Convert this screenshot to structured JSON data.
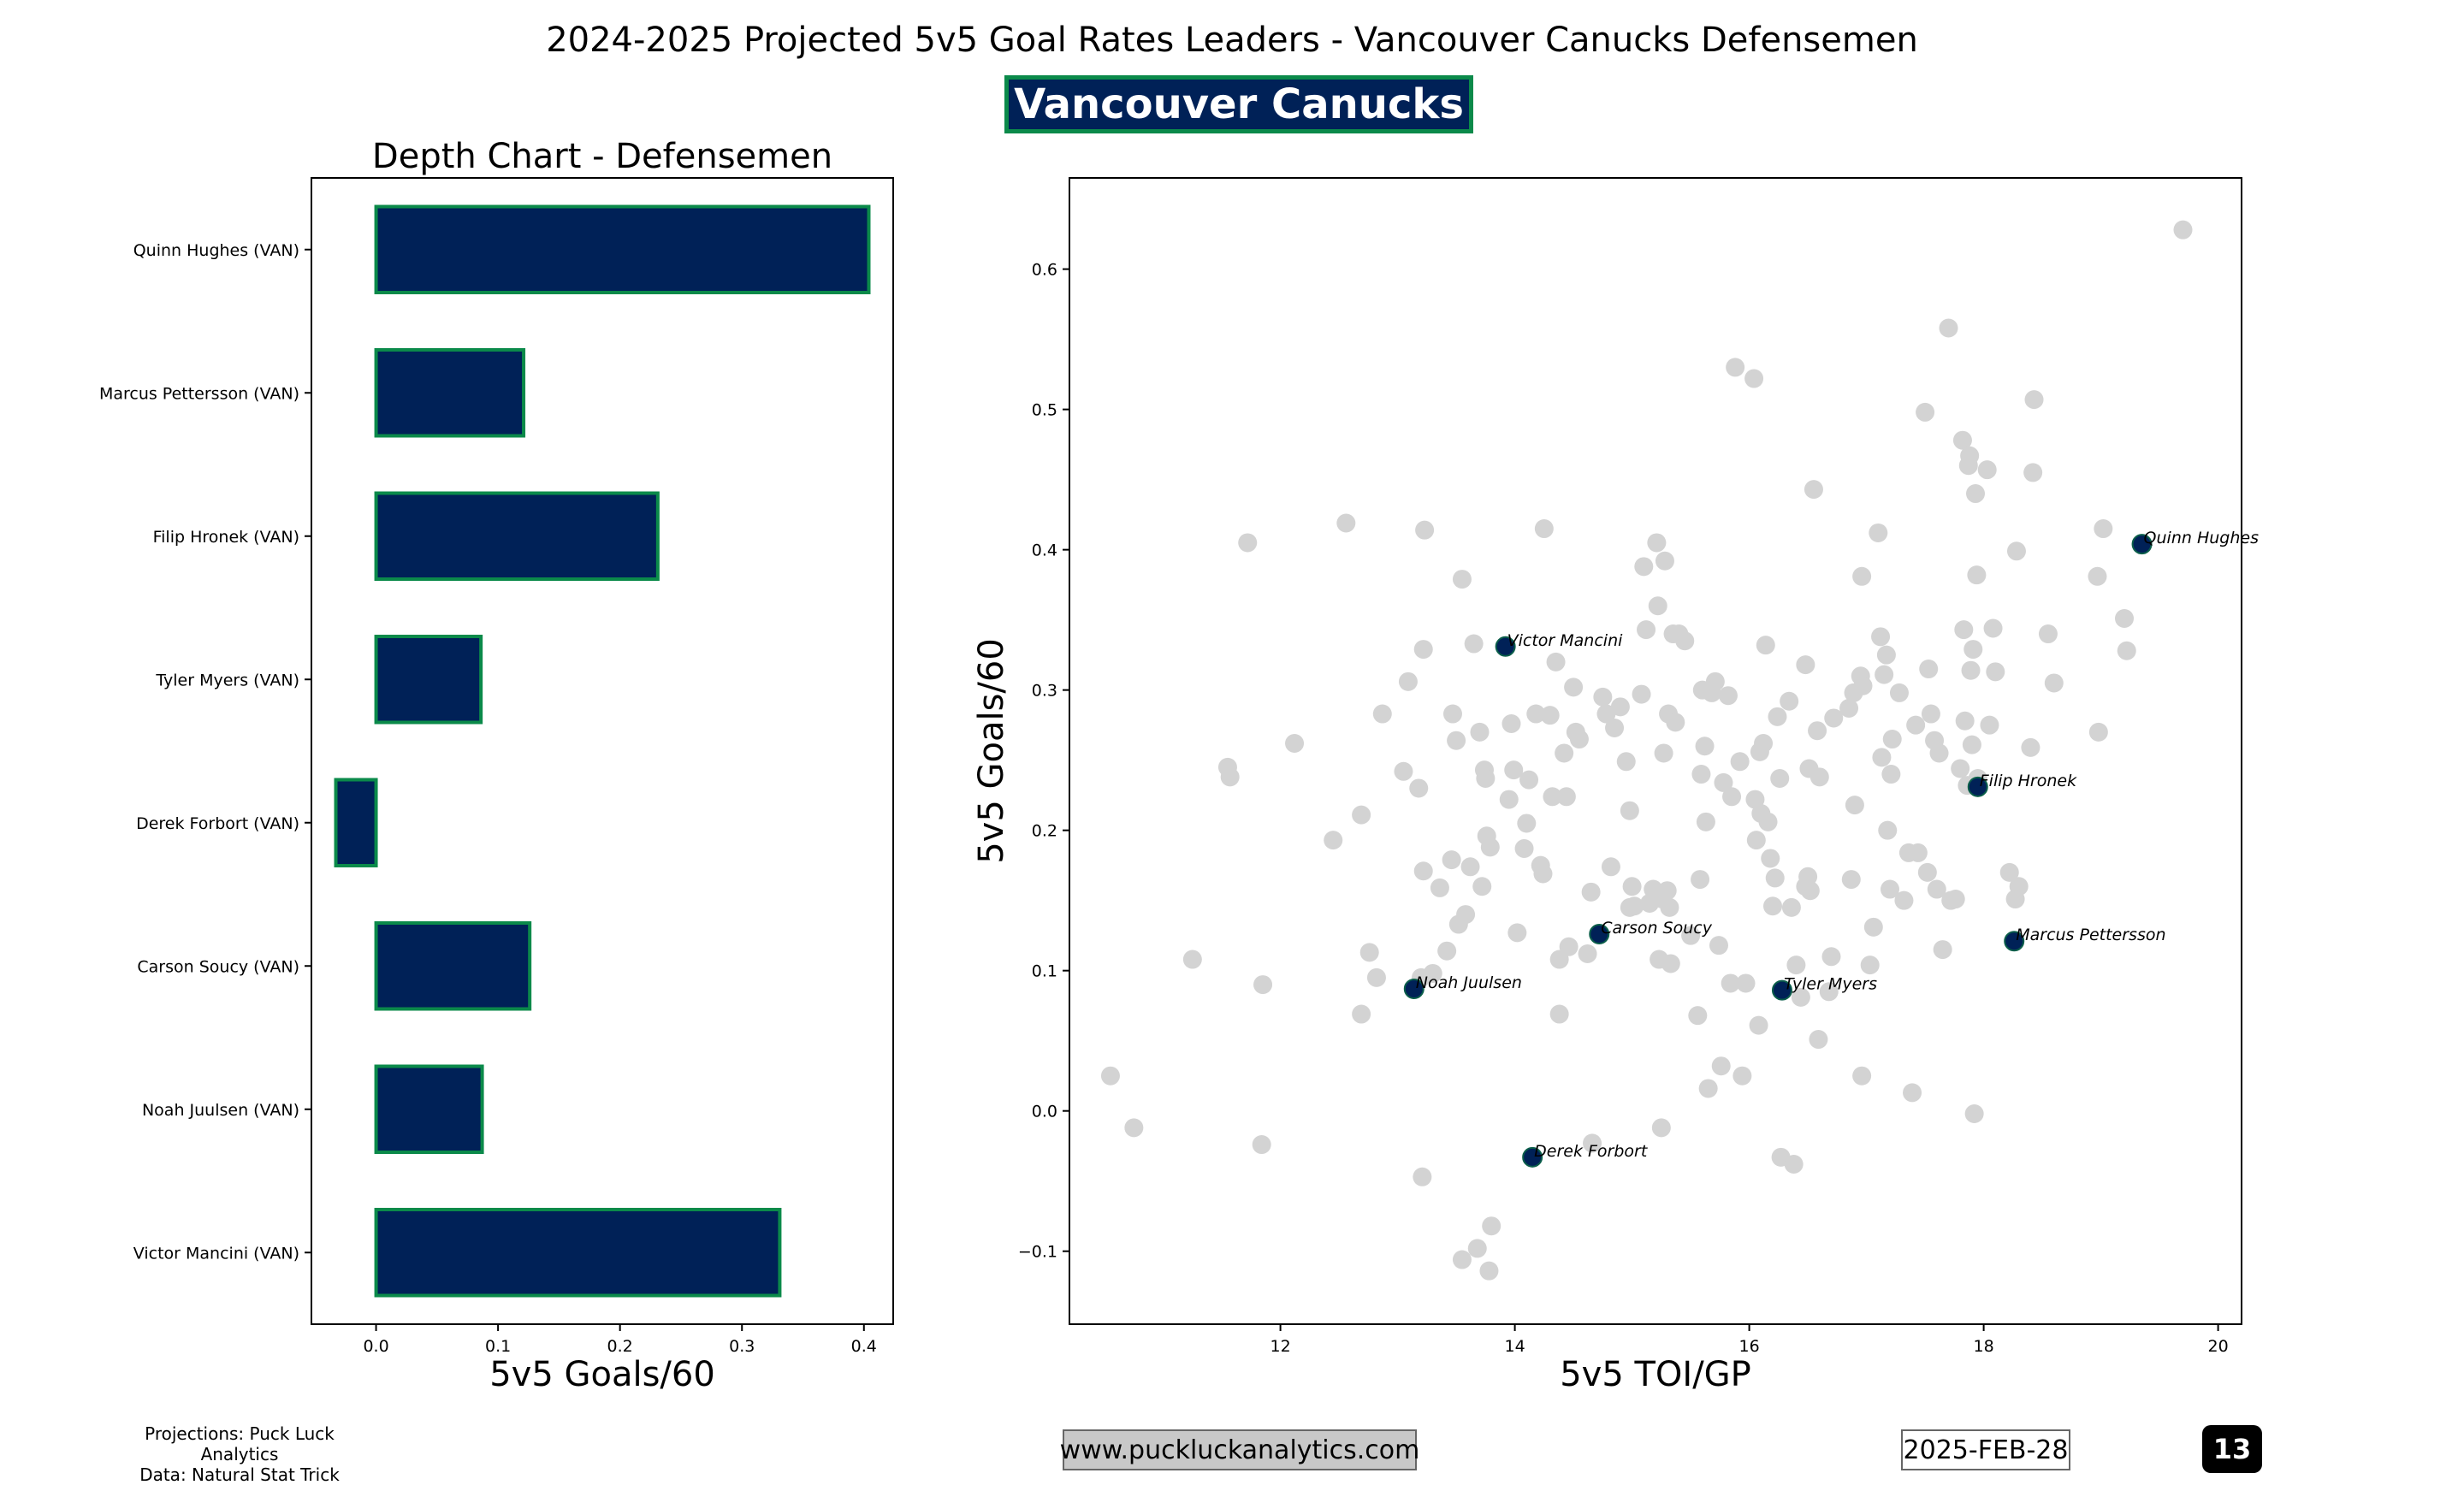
{
  "header": {
    "title": "2024-2025 Projected 5v5 Goal Rates Leaders - Vancouver Canucks Defensemen",
    "team_badge": "Vancouver Canucks"
  },
  "colors": {
    "bar_fill": "#002157",
    "bar_edge": "#0b8a4a",
    "highlight_point": "#002157",
    "background_point": "#d3d3d3"
  },
  "chart_data": [
    {
      "type": "bar",
      "orientation": "horizontal",
      "title": "Depth Chart - Defensemen",
      "xlabel": "5v5 Goals/60",
      "ylabel": "",
      "xlim": [
        -0.053,
        0.424
      ],
      "xticks": [
        "0.0",
        "0.1",
        "0.2",
        "0.3",
        "0.4"
      ],
      "categories": [
        "Quinn Hughes (VAN)",
        "Marcus Pettersson (VAN)",
        "Filip Hronek (VAN)",
        "Tyler Myers (VAN)",
        "Derek Forbort (VAN)",
        "Carson Soucy (VAN)",
        "Noah Juulsen (VAN)",
        "Victor Mancini (VAN)"
      ],
      "values": [
        0.404,
        0.121,
        0.231,
        0.086,
        -0.033,
        0.126,
        0.087,
        0.331
      ]
    },
    {
      "type": "scatter",
      "xlabel": "5v5 TOI/GP",
      "ylabel": "5v5 Goals/60",
      "xlim": [
        10.2,
        20.2
      ],
      "ylim": [
        -0.152,
        0.665
      ],
      "xticks": [
        "12",
        "14",
        "16",
        "18",
        "20"
      ],
      "yticks": [
        "−0.1",
        "0.0",
        "0.1",
        "0.2",
        "0.3",
        "0.4",
        "0.5",
        "0.6"
      ],
      "highlighted": [
        {
          "label": "Quinn Hughes",
          "x": 19.35,
          "y": 0.404
        },
        {
          "label": "Victor Mancini",
          "x": 13.92,
          "y": 0.331
        },
        {
          "label": "Filip Hronek",
          "x": 17.95,
          "y": 0.231
        },
        {
          "label": "Carson Soucy",
          "x": 14.72,
          "y": 0.126
        },
        {
          "label": "Marcus Pettersson",
          "x": 18.26,
          "y": 0.121
        },
        {
          "label": "Noah Juulsen",
          "x": 13.14,
          "y": 0.087
        },
        {
          "label": "Tyler Myers",
          "x": 16.28,
          "y": 0.086
        },
        {
          "label": "Derek Forbort",
          "x": 14.15,
          "y": -0.033
        }
      ],
      "others": [
        [
          10.55,
          0.025
        ],
        [
          10.75,
          -0.012
        ],
        [
          11.25,
          0.108
        ],
        [
          11.55,
          0.245
        ],
        [
          11.57,
          0.238
        ],
        [
          11.72,
          0.405
        ],
        [
          11.85,
          0.09
        ],
        [
          11.84,
          -0.024
        ],
        [
          12.12,
          0.262
        ],
        [
          12.45,
          0.193
        ],
        [
          12.56,
          0.419
        ],
        [
          12.69,
          0.211
        ],
        [
          12.76,
          0.113
        ],
        [
          12.82,
          0.095
        ],
        [
          12.87,
          0.283
        ],
        [
          12.69,
          0.069
        ],
        [
          13.05,
          0.242
        ],
        [
          13.09,
          0.306
        ],
        [
          13.18,
          0.23
        ],
        [
          13.22,
          0.329
        ],
        [
          13.23,
          0.414
        ],
        [
          13.22,
          0.171
        ],
        [
          13.21,
          -0.047
        ],
        [
          13.3,
          0.098
        ],
        [
          13.36,
          0.159
        ],
        [
          13.42,
          0.114
        ],
        [
          13.47,
          0.283
        ],
        [
          13.46,
          0.179
        ],
        [
          13.5,
          0.264
        ],
        [
          13.52,
          0.133
        ],
        [
          13.55,
          0.379
        ],
        [
          13.58,
          0.14
        ],
        [
          13.62,
          0.174
        ],
        [
          13.65,
          0.333
        ],
        [
          13.7,
          0.27
        ],
        [
          13.72,
          0.16
        ],
        [
          13.74,
          0.243
        ],
        [
          13.75,
          0.237
        ],
        [
          13.76,
          0.196
        ],
        [
          13.79,
          0.188
        ],
        [
          13.8,
          -0.082
        ],
        [
          13.78,
          -0.114
        ],
        [
          13.68,
          -0.098
        ],
        [
          13.55,
          -0.106
        ],
        [
          13.95,
          0.222
        ],
        [
          13.97,
          0.276
        ],
        [
          13.99,
          0.243
        ],
        [
          14.02,
          0.127
        ],
        [
          14.08,
          0.187
        ],
        [
          14.1,
          0.205
        ],
        [
          14.12,
          0.236
        ],
        [
          14.18,
          0.283
        ],
        [
          14.22,
          0.175
        ],
        [
          14.24,
          0.169
        ],
        [
          14.25,
          0.415
        ],
        [
          14.3,
          0.282
        ],
        [
          14.32,
          0.224
        ],
        [
          14.35,
          0.32
        ],
        [
          14.38,
          0.108
        ],
        [
          14.42,
          0.255
        ],
        [
          14.44,
          0.224
        ],
        [
          14.46,
          0.117
        ],
        [
          14.5,
          0.302
        ],
        [
          14.52,
          0.27
        ],
        [
          14.55,
          0.265
        ],
        [
          14.62,
          0.112
        ],
        [
          14.65,
          0.156
        ],
        [
          14.66,
          -0.023
        ],
        [
          14.75,
          0.295
        ],
        [
          14.78,
          0.283
        ],
        [
          14.82,
          0.174
        ],
        [
          14.85,
          0.273
        ],
        [
          14.9,
          0.288
        ],
        [
          14.95,
          0.249
        ],
        [
          14.98,
          0.214
        ],
        [
          15.0,
          0.16
        ],
        [
          15.02,
          0.146
        ],
        [
          15.08,
          0.297
        ],
        [
          15.1,
          0.388
        ],
        [
          15.12,
          0.343
        ],
        [
          15.15,
          0.148
        ],
        [
          15.18,
          0.158
        ],
        [
          15.21,
          0.405
        ],
        [
          15.22,
          0.36
        ],
        [
          15.23,
          0.108
        ],
        [
          15.25,
          -0.012
        ],
        [
          15.26,
          0.151
        ],
        [
          15.27,
          0.255
        ],
        [
          15.28,
          0.392
        ],
        [
          15.3,
          0.157
        ],
        [
          15.31,
          0.283
        ],
        [
          15.32,
          0.145
        ],
        [
          15.33,
          0.105
        ],
        [
          15.35,
          0.34
        ],
        [
          15.37,
          0.277
        ],
        [
          15.4,
          0.34
        ],
        [
          15.45,
          0.335
        ],
        [
          15.5,
          0.125
        ],
        [
          15.56,
          0.068
        ],
        [
          15.58,
          0.165
        ],
        [
          15.59,
          0.24
        ],
        [
          15.6,
          0.3
        ],
        [
          15.62,
          0.26
        ],
        [
          15.63,
          0.206
        ],
        [
          15.65,
          0.016
        ],
        [
          15.71,
          0.306
        ],
        [
          15.74,
          0.118
        ],
        [
          15.76,
          0.032
        ],
        [
          15.78,
          0.234
        ],
        [
          15.82,
          0.296
        ],
        [
          15.84,
          0.091
        ],
        [
          15.85,
          0.224
        ],
        [
          15.88,
          0.53
        ],
        [
          15.92,
          0.249
        ],
        [
          15.94,
          0.025
        ],
        [
          15.97,
          0.091
        ],
        [
          16.04,
          0.522
        ],
        [
          16.05,
          0.222
        ],
        [
          16.06,
          0.193
        ],
        [
          16.08,
          0.061
        ],
        [
          16.09,
          0.256
        ],
        [
          16.1,
          0.212
        ],
        [
          16.12,
          0.262
        ],
        [
          16.14,
          0.332
        ],
        [
          16.16,
          0.206
        ],
        [
          16.18,
          0.18
        ],
        [
          16.2,
          0.146
        ],
        [
          16.22,
          0.166
        ],
        [
          16.26,
          0.237
        ],
        [
          16.24,
          0.281
        ],
        [
          16.27,
          -0.033
        ],
        [
          16.34,
          0.292
        ],
        [
          16.36,
          0.145
        ],
        [
          16.38,
          -0.038
        ],
        [
          16.4,
          0.104
        ],
        [
          16.44,
          0.081
        ],
        [
          16.48,
          0.318
        ],
        [
          16.5,
          0.167
        ],
        [
          16.51,
          0.244
        ],
        [
          16.52,
          0.157
        ],
        [
          16.55,
          0.443
        ],
        [
          16.58,
          0.271
        ],
        [
          16.59,
          0.051
        ],
        [
          16.6,
          0.238
        ],
        [
          16.68,
          0.085
        ],
        [
          16.7,
          0.11
        ],
        [
          16.72,
          0.28
        ],
        [
          16.85,
          0.287
        ],
        [
          16.87,
          0.165
        ],
        [
          16.89,
          0.298
        ],
        [
          16.9,
          0.218
        ],
        [
          16.95,
          0.31
        ],
        [
          16.96,
          0.381
        ],
        [
          16.97,
          0.303
        ],
        [
          16.96,
          0.025
        ],
        [
          17.03,
          0.104
        ],
        [
          17.06,
          0.131
        ],
        [
          17.1,
          0.412
        ],
        [
          17.12,
          0.338
        ],
        [
          17.13,
          0.252
        ],
        [
          17.15,
          0.311
        ],
        [
          17.17,
          0.325
        ],
        [
          17.18,
          0.2
        ],
        [
          17.2,
          0.158
        ],
        [
          17.21,
          0.24
        ],
        [
          17.22,
          0.265
        ],
        [
          17.28,
          0.298
        ],
        [
          17.32,
          0.15
        ],
        [
          17.36,
          0.184
        ],
        [
          17.39,
          0.013
        ],
        [
          17.42,
          0.275
        ],
        [
          17.44,
          0.184
        ],
        [
          17.5,
          0.498
        ],
        [
          17.52,
          0.17
        ],
        [
          17.53,
          0.315
        ],
        [
          17.55,
          0.283
        ],
        [
          17.58,
          0.264
        ],
        [
          17.6,
          0.158
        ],
        [
          17.62,
          0.255
        ],
        [
          17.65,
          0.115
        ],
        [
          17.7,
          0.558
        ],
        [
          17.72,
          0.15
        ],
        [
          17.76,
          0.151
        ],
        [
          17.8,
          0.244
        ],
        [
          17.82,
          0.478
        ],
        [
          17.83,
          0.343
        ],
        [
          17.84,
          0.278
        ],
        [
          17.86,
          0.232
        ],
        [
          17.87,
          0.46
        ],
        [
          17.88,
          0.467
        ],
        [
          17.89,
          0.314
        ],
        [
          17.9,
          0.261
        ],
        [
          17.91,
          0.329
        ],
        [
          17.93,
          0.44
        ],
        [
          17.94,
          0.382
        ],
        [
          17.95,
          0.237
        ],
        [
          17.92,
          -0.002
        ],
        [
          18.03,
          0.457
        ],
        [
          18.05,
          0.275
        ],
        [
          18.08,
          0.344
        ],
        [
          18.1,
          0.313
        ],
        [
          18.22,
          0.17
        ],
        [
          18.28,
          0.399
        ],
        [
          18.3,
          0.16
        ],
        [
          18.27,
          0.151
        ],
        [
          18.4,
          0.259
        ],
        [
          18.43,
          0.507
        ],
        [
          18.42,
          0.455
        ],
        [
          18.55,
          0.34
        ],
        [
          18.6,
          0.305
        ],
        [
          18.97,
          0.381
        ],
        [
          18.98,
          0.27
        ],
        [
          19.02,
          0.415
        ],
        [
          19.2,
          0.351
        ],
        [
          19.22,
          0.328
        ],
        [
          19.7,
          0.628
        ],
        [
          13.2,
          0.095
        ],
        [
          14.38,
          0.069
        ],
        [
          15.68,
          0.298
        ],
        [
          14.98,
          0.145
        ],
        [
          16.48,
          0.16
        ]
      ]
    }
  ],
  "footer": {
    "credit_line1": "Projections: Puck Luck Analytics",
    "credit_line2": "Data: Natural Stat Trick",
    "website": "www.puckluckanalytics.com",
    "date": "2025-FEB-28",
    "page_number": "13"
  }
}
